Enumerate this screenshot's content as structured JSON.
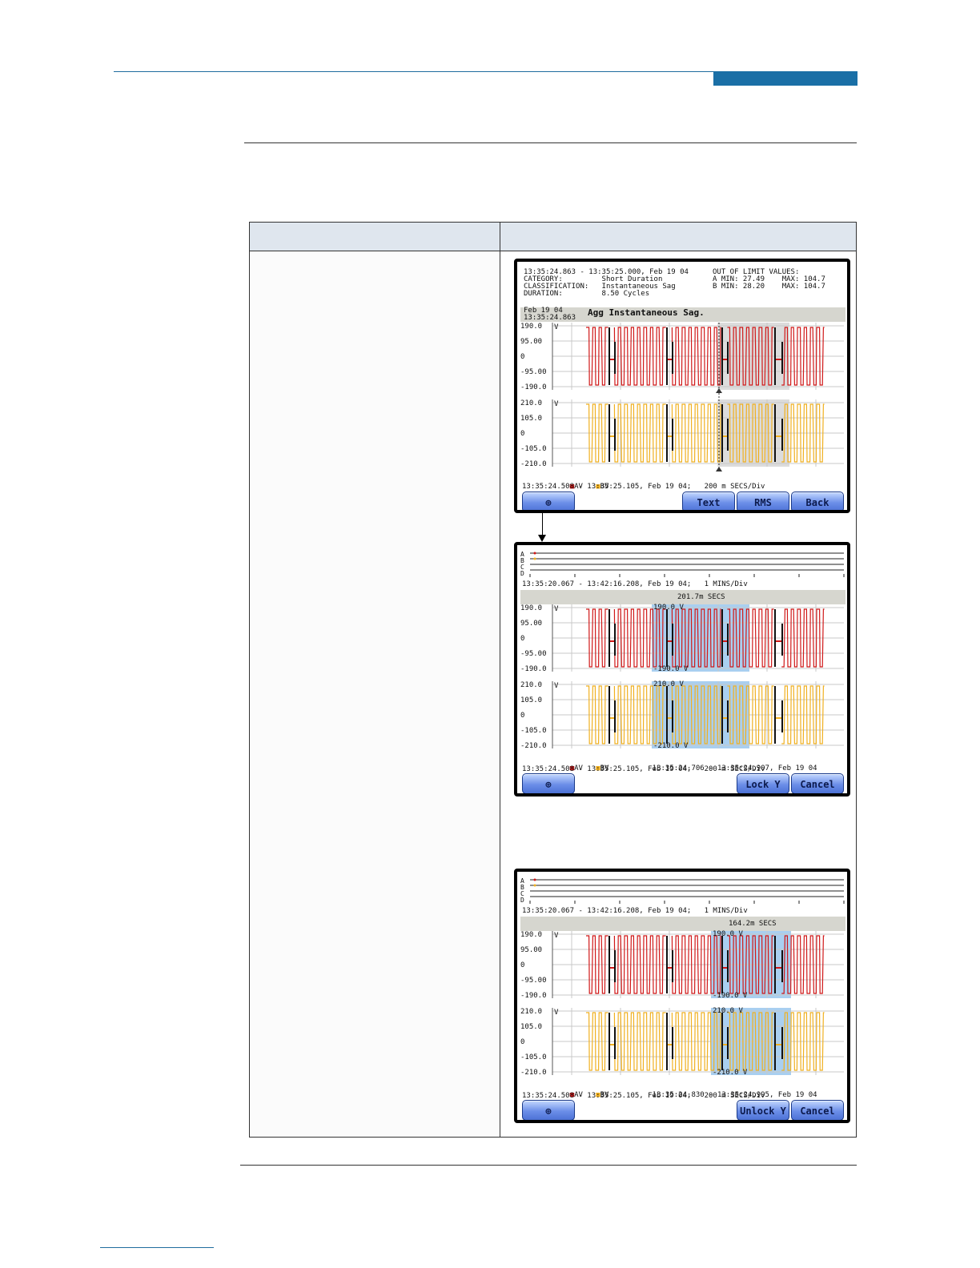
{
  "screen1": {
    "info_left": "13:35:24.863 - 13:35:25.000, Feb 19 04\nCATEGORY:         Short Duration\nCLASSIFICATION:   Instantaneous Sag\nDURATION:         8.50 Cycles",
    "info_right": "OUT OF LIMIT VALUES:\nA MIN: 27.49    MAX: 104.7\nB MIN: 28.20    MAX: 104.7",
    "band_date": "Feb 19 04\n13:35:24.863",
    "band_title": "Agg Instantaneous Sag.",
    "red_ticks": [
      "190.0",
      "95.00",
      "0",
      "-95.00",
      "-190.0"
    ],
    "yellow_ticks": [
      "210.0",
      "105.0",
      "0",
      "-105.0",
      "-210.0"
    ],
    "unit": "V",
    "legend_a": "AV",
    "legend_b": "BV",
    "timeline": "13:35:24.508 - 13:35:25.105, Feb 19 04;   200 m SECS/Div",
    "btn_zoom": "⊕",
    "btn_text": "Text",
    "btn_rms": "RMS",
    "btn_back": "Back"
  },
  "screen2": {
    "channels": "A\nB\nC\nD",
    "overview_time": "13:35:20.067 - 13:42:16.208, Feb 19 04;   1 MINS/Div",
    "band_title": "201.7m SECS",
    "red_ticks": [
      "190.0",
      "95.00",
      "0",
      "-95.00",
      "-190.0"
    ],
    "yellow_ticks": [
      "210.0",
      "105.0",
      "0",
      "-105.0",
      "-210.0"
    ],
    "unit": "V",
    "sel_red_top": "190.0 V",
    "sel_red_bot": "-190.0 V",
    "sel_yel_top": "210.0 V",
    "sel_yel_bot": "-210.0 V",
    "legend_a": "AV",
    "legend_b": "BV",
    "sel_range": "13:35:24.706 - 13:35:24.907, Feb 19 04",
    "timeline": "13:35:24.508 - 13:35:25.105, Feb 19 04;   200 m SECS/Div",
    "btn_zoom": "⊕",
    "btn_lock": "Lock Y",
    "btn_cancel": "Cancel"
  },
  "screen3": {
    "channels": "A\nB\nC\nD",
    "overview_time": "13:35:20.067 - 13:42:16.208, Feb 19 04;   1 MINS/Div",
    "band_title": "164.2m SECS",
    "red_ticks": [
      "190.0",
      "95.00",
      "0",
      "-95.00",
      "-190.0"
    ],
    "yellow_ticks": [
      "210.0",
      "105.0",
      "0",
      "-105.0",
      "-210.0"
    ],
    "unit": "V",
    "sel_red_top": "190.0 V",
    "sel_red_bot": "-190.0 V",
    "sel_yel_top": "210.0 V",
    "sel_yel_bot": "-210.0 V",
    "legend_a": "AV",
    "legend_b": "BV",
    "sel_range": "13:35:24.830 - 13:35:24.995, Feb 19 04",
    "timeline": "13:35:24.508 - 13:35:25.105, Feb 19 04;   200 m SECS/Div",
    "btn_zoom": "⊕",
    "btn_unlock": "Unlock Y",
    "btn_cancel": "Cancel"
  },
  "colors": {
    "phase_a": "#d01818",
    "phase_b": "#f0b020",
    "header_blue": "#1a6fa6",
    "selection_blue": "#a9cff0",
    "event_gray": "#dcdcdc"
  }
}
